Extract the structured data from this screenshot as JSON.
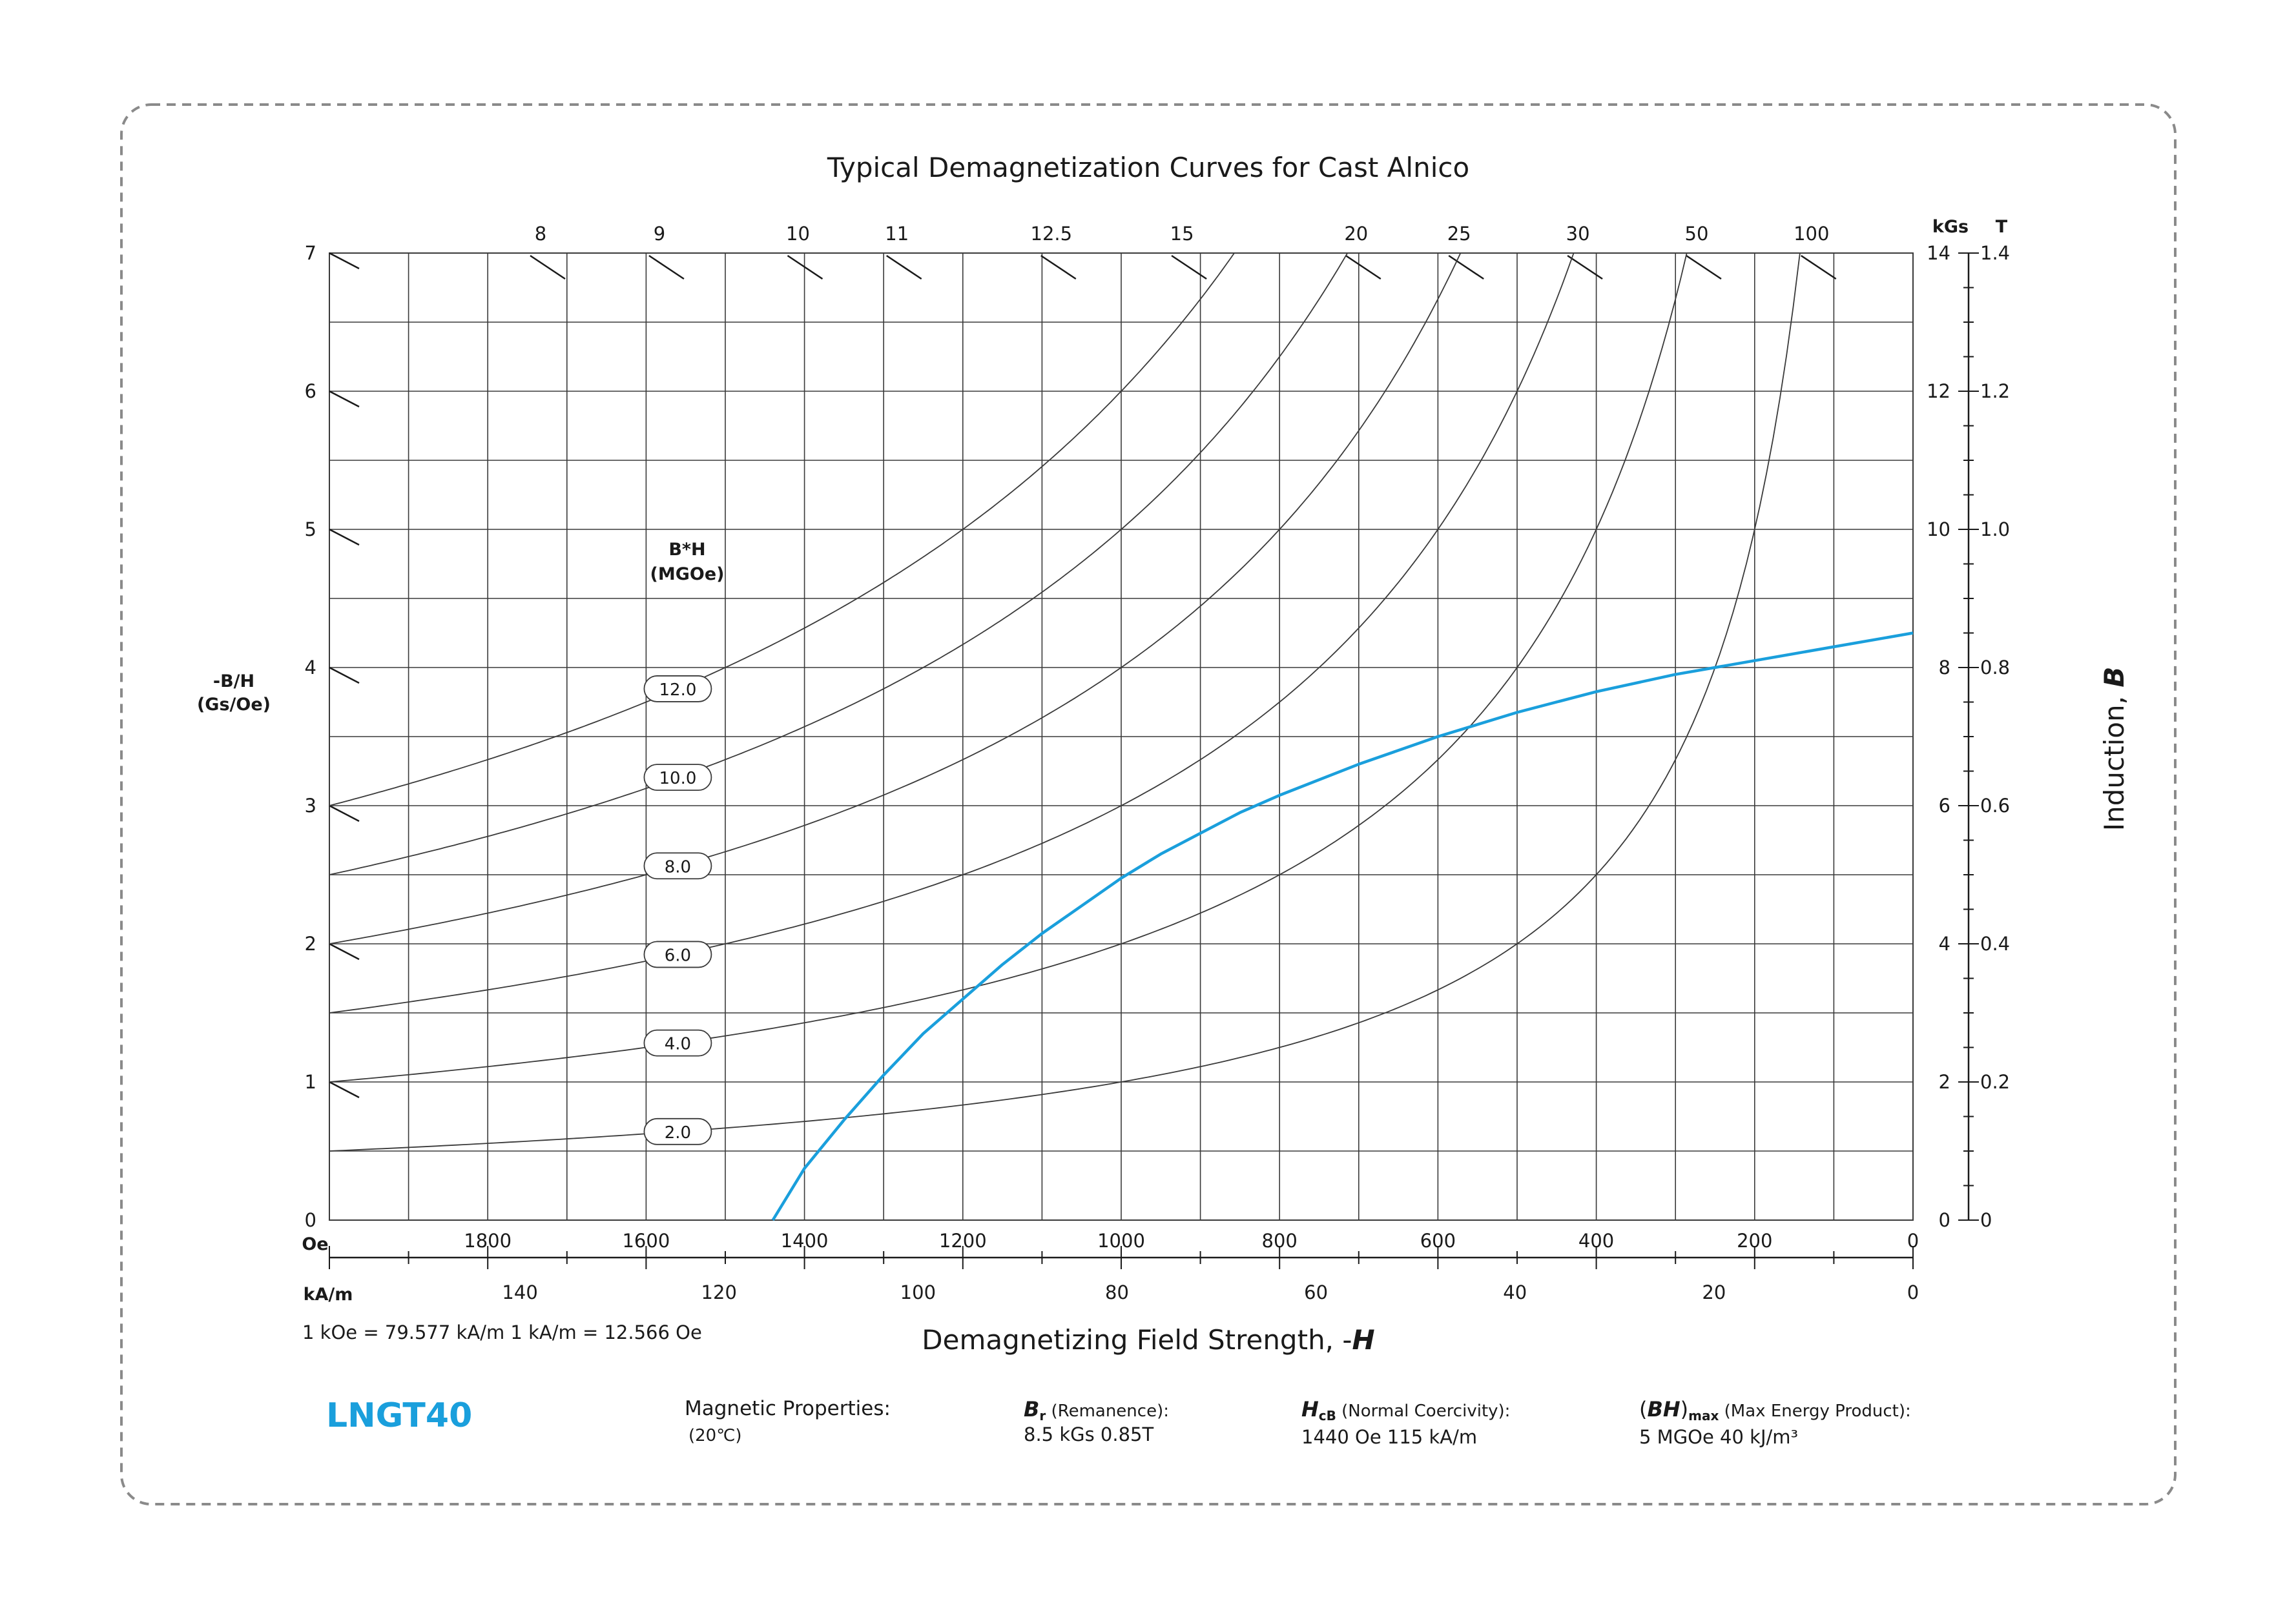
{
  "chart_data": {
    "type": "line",
    "title": "Typical Demagnetization Curves for Cast Alnico",
    "xlabel": "Demagnetizing Field Strength, -",
    "xlabel_symbol": "H",
    "xlim": [
      2000,
      0
    ],
    "x_ticks_oe": [
      "1800",
      "1600",
      "1400",
      "1200",
      "1000",
      "800",
      "600",
      "400",
      "200",
      "0"
    ],
    "x_ticks_kam": [
      "140",
      "120",
      "100",
      "80",
      "60",
      "40",
      "20",
      "0"
    ],
    "x_unit_oe": "Oe",
    "x_unit_kam": "kA/m",
    "conversion_note": "1 kOe = 79.577 kA/m   1 kA/m = 12.566 Oe",
    "ylabel_right": "Induction, ",
    "ylabel_right_symbol": "B",
    "ylim_kgs": [
      0,
      14
    ],
    "y_ticks_kgs": [
      "0",
      "2",
      "4",
      "6",
      "8",
      "10",
      "12",
      "14"
    ],
    "y_ticks_t": [
      "0",
      "0.2",
      "0.4",
      "0.6",
      "0.8",
      "1.0",
      "1.2",
      "1.4"
    ],
    "y_unit_kgs": "kGs",
    "y_unit_t": "T",
    "ylabel_left": [
      "-B/H",
      "(Gs/Oe)"
    ],
    "y_ticks_left": [
      "0",
      "1",
      "2",
      "3",
      "4",
      "5",
      "6",
      "7"
    ],
    "permeance_top_labels": [
      "8",
      "9",
      "10",
      "11",
      "12.5",
      "15",
      "20",
      "25",
      "30",
      "50",
      "100"
    ],
    "energy_label": [
      "B*H",
      "(MGOe)"
    ],
    "energy_curves": [
      {
        "label": "2.0",
        "bh_mgoe": 2.0
      },
      {
        "label": "4.0",
        "bh_mgoe": 4.0
      },
      {
        "label": "6.0",
        "bh_mgoe": 6.0
      },
      {
        "label": "8.0",
        "bh_mgoe": 8.0
      },
      {
        "label": "10.0",
        "bh_mgoe": 10.0
      },
      {
        "label": "12.0",
        "bh_mgoe": 12.0
      }
    ],
    "series": [
      {
        "color": "#1a9fdc",
        "x_oe": [
          1440,
          1400,
          1350,
          1300,
          1250,
          1200,
          1150,
          1100,
          1050,
          1000,
          950,
          900,
          850,
          800,
          700,
          600,
          500,
          400,
          300,
          200,
          100,
          0
        ],
        "y_kgs": [
          0,
          0.75,
          1.45,
          2.1,
          2.7,
          3.2,
          3.7,
          4.15,
          4.55,
          4.95,
          5.3,
          5.6,
          5.9,
          6.15,
          6.6,
          7.0,
          7.35,
          7.65,
          7.9,
          8.1,
          8.3,
          8.5
        ]
      }
    ],
    "grid": true
  },
  "footer": {
    "grade": "LNGT40",
    "magnetic_properties_label": "Magnetic Properties:",
    "temperature": "(20℃)",
    "br_symbol": "B",
    "br_sub": "r",
    "br_label": " (Remanence):",
    "br_value": "8.5 kGs   0.85T",
    "hcb_symbol": "H",
    "hcb_sub": "cB",
    "hcb_label": " (Normal Coercivity):",
    "hcb_value": "1440 Oe   115 kA/m",
    "bhmax_symbol": "BH",
    "bhmax_sub": "max",
    "bhmax_label": " (Max Energy Product):",
    "bhmax_value": "5 MGOe    40 kJ/m³"
  },
  "colors": {
    "accent": "#1a9fdc",
    "grid": "#3a3a3a",
    "border": "#8a8a8a"
  }
}
